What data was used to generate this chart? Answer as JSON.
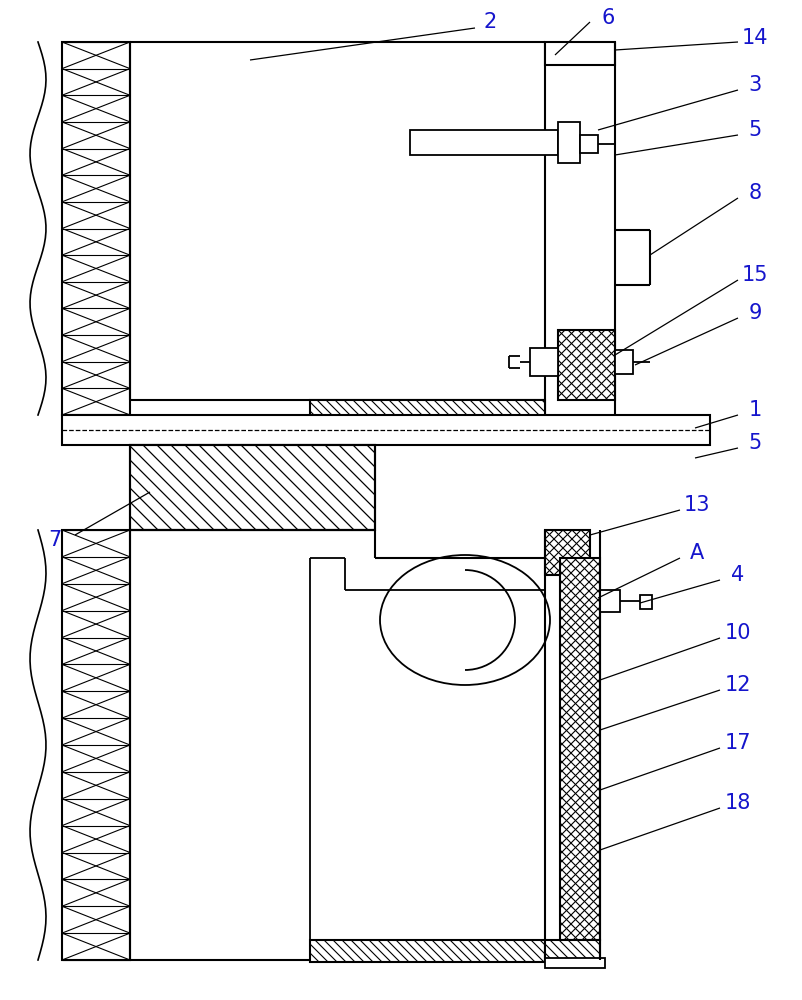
{
  "fig_width": 8.02,
  "fig_height": 10.0,
  "dpi": 100,
  "bg_color": "#ffffff"
}
